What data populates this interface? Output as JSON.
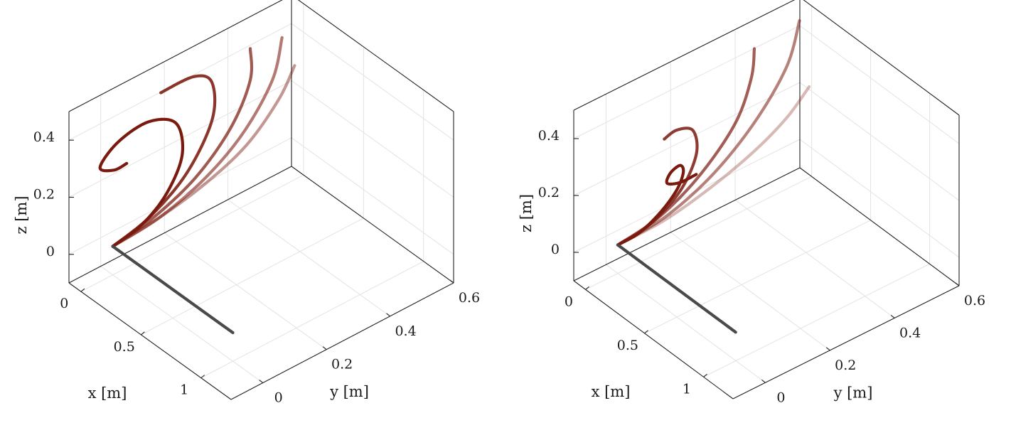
{
  "chart_data": [
    {
      "type": "line3d",
      "xlabel": "x [m]",
      "ylabel": "y [m]",
      "zlabel": "z [m]",
      "xlim": [
        -0.1,
        1.25
      ],
      "ylim": [
        -0.1,
        0.6
      ],
      "zlim": [
        -0.1,
        0.5
      ],
      "xticks": [
        "0",
        "0.5",
        "1"
      ],
      "yticks": [
        "0",
        "0.2",
        "0.4",
        "0.6"
      ],
      "zticks": [
        "0",
        "0.2",
        "0.4"
      ],
      "grid": true,
      "box": true,
      "series": [
        {
          "color": "#4a4a4a",
          "alpha": 1.0,
          "points": [
            [
              0.0,
              0.0,
              0.0
            ],
            [
              0.3,
              0.0,
              0.0
            ],
            [
              0.6,
              0.0,
              0.0
            ],
            [
              0.9,
              0.0,
              0.0
            ],
            [
              1.0,
              0.0,
              0.0
            ]
          ]
        },
        {
          "color": "#7a1a0e",
          "alpha": 1.0,
          "points": [
            [
              0.0,
              0.0,
              0.0
            ],
            [
              -0.01,
              0.1,
              0.02
            ],
            [
              -0.02,
              0.18,
              0.08
            ],
            [
              -0.03,
              0.23,
              0.18
            ],
            [
              -0.03,
              0.21,
              0.3
            ],
            [
              -0.02,
              0.12,
              0.36
            ],
            [
              -0.01,
              0.02,
              0.35
            ],
            [
              0.0,
              -0.04,
              0.3
            ],
            [
              0.01,
              0.0,
              0.27
            ],
            [
              0.01,
              0.04,
              0.27
            ]
          ]
        },
        {
          "color": "#7a1a0e",
          "alpha": 0.88,
          "points": [
            [
              0.0,
              0.0,
              0.0
            ],
            [
              -0.01,
              0.12,
              0.03
            ],
            [
              -0.02,
              0.24,
              0.11
            ],
            [
              -0.02,
              0.32,
              0.25
            ],
            [
              -0.02,
              0.32,
              0.38
            ],
            [
              -0.01,
              0.26,
              0.44
            ],
            [
              0.0,
              0.15,
              0.45
            ]
          ]
        },
        {
          "color": "#7a1a0e",
          "alpha": 0.72,
          "points": [
            [
              0.0,
              0.0,
              0.0
            ],
            [
              -0.01,
              0.13,
              0.02
            ],
            [
              -0.02,
              0.27,
              0.08
            ],
            [
              -0.02,
              0.38,
              0.19
            ],
            [
              -0.02,
              0.44,
              0.32
            ],
            [
              -0.02,
              0.44,
              0.43
            ]
          ]
        },
        {
          "color": "#7a1a0e",
          "alpha": 0.58,
          "points": [
            [
              0.0,
              0.0,
              0.0
            ],
            [
              -0.01,
              0.15,
              0.01
            ],
            [
              -0.02,
              0.3,
              0.06
            ],
            [
              -0.02,
              0.42,
              0.15
            ],
            [
              -0.02,
              0.51,
              0.28
            ],
            [
              -0.02,
              0.54,
              0.41
            ]
          ]
        },
        {
          "color": "#7a1a0e",
          "alpha": 0.45,
          "points": [
            [
              0.0,
              0.0,
              0.0
            ],
            [
              -0.01,
              0.15,
              0.01
            ],
            [
              -0.02,
              0.3,
              0.04
            ],
            [
              -0.02,
              0.43,
              0.1
            ],
            [
              -0.02,
              0.53,
              0.2
            ],
            [
              -0.02,
              0.58,
              0.29
            ]
          ]
        }
      ]
    },
    {
      "type": "line3d",
      "xlabel": "x [m]",
      "ylabel": "y [m]",
      "zlabel": "z [m]",
      "xlim": [
        -0.1,
        1.25
      ],
      "ylim": [
        -0.1,
        0.6
      ],
      "zlim": [
        -0.1,
        0.5
      ],
      "xticks": [
        "0",
        "0.5",
        "1"
      ],
      "yticks": [
        "0",
        "0.2",
        "0.4",
        "0.6"
      ],
      "zticks": [
        "0",
        "0.2",
        "0.4"
      ],
      "grid": true,
      "box": true,
      "series": [
        {
          "color": "#4a4a4a",
          "alpha": 1.0,
          "points": [
            [
              0.0,
              0.0,
              0.0
            ],
            [
              0.3,
              0.0,
              0.0
            ],
            [
              0.6,
              0.0,
              0.0
            ],
            [
              0.9,
              0.0,
              0.0
            ],
            [
              1.0,
              0.0,
              0.0
            ]
          ]
        },
        {
          "color": "#7a1a0e",
          "alpha": 1.0,
          "points": [
            [
              0.0,
              0.0,
              0.0
            ],
            [
              -0.01,
              0.07,
              0.0
            ],
            [
              -0.02,
              0.14,
              0.03
            ],
            [
              -0.02,
              0.19,
              0.08
            ],
            [
              -0.02,
              0.21,
              0.13
            ],
            [
              -0.02,
              0.2,
              0.16
            ],
            [
              -0.02,
              0.17,
              0.15
            ],
            [
              -0.02,
              0.16,
              0.12
            ],
            [
              -0.02,
              0.2,
              0.1
            ],
            [
              -0.02,
              0.25,
              0.1
            ]
          ]
        },
        {
          "color": "#7a1a0e",
          "alpha": 0.85,
          "points": [
            [
              0.0,
              0.0,
              0.0
            ],
            [
              -0.01,
              0.1,
              0.01
            ],
            [
              -0.02,
              0.2,
              0.07
            ],
            [
              -0.02,
              0.25,
              0.17
            ],
            [
              -0.02,
              0.24,
              0.26
            ],
            [
              -0.02,
              0.19,
              0.29
            ],
            [
              -0.02,
              0.15,
              0.28
            ]
          ]
        },
        {
          "color": "#7a1a0e",
          "alpha": 0.7,
          "points": [
            [
              0.0,
              0.0,
              0.0
            ],
            [
              -0.01,
              0.13,
              0.02
            ],
            [
              -0.02,
              0.26,
              0.09
            ],
            [
              -0.02,
              0.37,
              0.21
            ],
            [
              -0.02,
              0.42,
              0.34
            ],
            [
              -0.02,
              0.43,
              0.44
            ]
          ]
        },
        {
          "color": "#7a1a0e",
          "alpha": 0.55,
          "points": [
            [
              0.0,
              0.0,
              0.0
            ],
            [
              -0.01,
              0.15,
              0.01
            ],
            [
              -0.02,
              0.3,
              0.07
            ],
            [
              -0.02,
              0.43,
              0.18
            ],
            [
              -0.02,
              0.53,
              0.32
            ],
            [
              -0.02,
              0.57,
              0.46
            ]
          ]
        },
        {
          "color": "#7a1a0e",
          "alpha": 0.3,
          "points": [
            [
              0.0,
              0.0,
              0.0
            ],
            [
              -0.01,
              0.15,
              0.0
            ],
            [
              -0.02,
              0.3,
              0.03
            ],
            [
              -0.02,
              0.43,
              0.08
            ],
            [
              -0.02,
              0.53,
              0.14
            ],
            [
              -0.02,
              0.6,
              0.21
            ]
          ]
        }
      ]
    }
  ]
}
